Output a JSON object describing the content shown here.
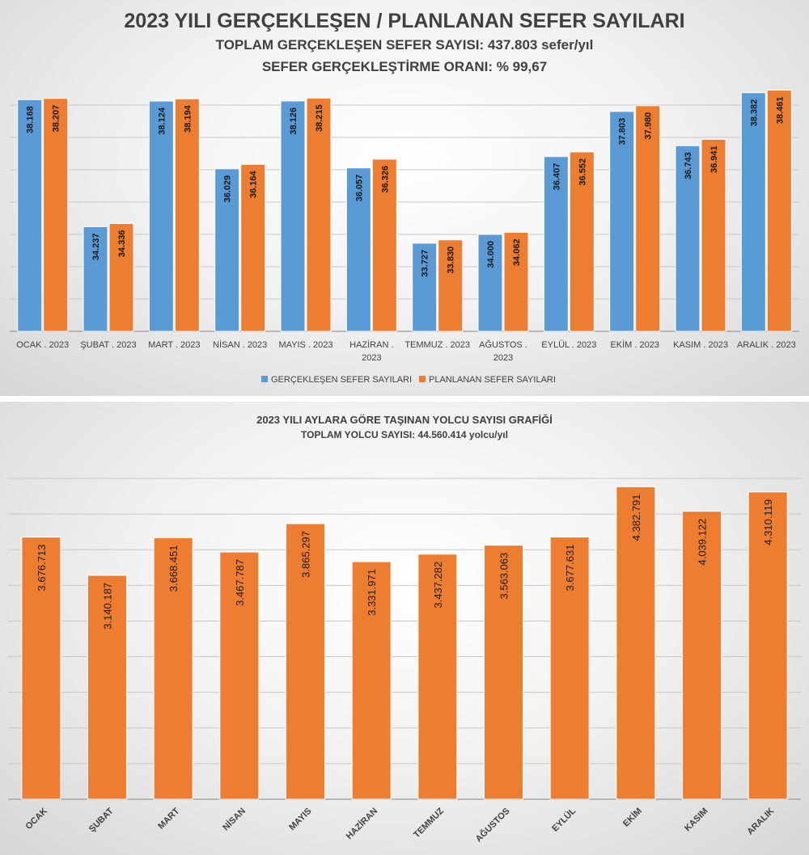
{
  "chart_data": [
    {
      "type": "bar",
      "title": "2023 YILI GERÇEKLEŞEN / PLANLANAN SEFER SAYILARI",
      "subtitle_1": "TOPLAM GERÇEKLEŞEN SEFER SAYISI: 437.803 sefer/yıl",
      "subtitle_2": "SEFER GERÇEKLEŞTİRME ORANI: % 99,67",
      "categories": [
        "OCAK . 2023",
        "ŞUBAT . 2023",
        "MART . 2023",
        "NİSAN . 2023",
        "MAYIS . 2023",
        "HAZİRAN . 2023",
        "TEMMUZ . 2023",
        "AĞUSTOS . 2023",
        "EYLÜL . 2023",
        "EKİM . 2023",
        "KASIM . 2023",
        "ARALIK . 2023"
      ],
      "series": [
        {
          "name": "GERÇEKLEŞEN SEFER SAYILARI",
          "color": "#5b9bd5",
          "values": [
            38168,
            34237,
            38124,
            36029,
            38126,
            36057,
            33727,
            34000,
            36407,
            37803,
            36743,
            38382
          ],
          "labels": [
            "38.168",
            "34.237",
            "38.124",
            "36.029",
            "38.126",
            "36.057",
            "33.727",
            "34.000",
            "36.407",
            "37.803",
            "36.743",
            "38.382"
          ]
        },
        {
          "name": "PLANLANAN SEFER SAYILARI",
          "color": "#ed7d31",
          "values": [
            38207,
            34336,
            38194,
            36164,
            38215,
            36326,
            33830,
            34062,
            36552,
            37980,
            36941,
            38461
          ],
          "labels": [
            "38.207",
            "34.336",
            "38.194",
            "36.164",
            "38.215",
            "36.326",
            "33.830",
            "34.062",
            "36.552",
            "37.980",
            "36.941",
            "38.461"
          ]
        }
      ],
      "ylim": [
        31000,
        38500
      ],
      "grid": true,
      "legend": "bottom"
    },
    {
      "type": "bar",
      "title": "2023 YILI AYLARA GÖRE TAŞINAN YOLCU SAYISI GRAFİĞİ",
      "subtitle": "TOPLAM YOLCU SAYISI: 44.560.414 yolcu/yıl",
      "categories": [
        "OCAK",
        "ŞUBAT",
        "MART",
        "NİSAN",
        "MAYIS",
        "HAZİRAN",
        "TEMMUZ",
        "AĞUSTOS",
        "EYLÜL",
        "EKİM",
        "KASIM",
        "ARALIK"
      ],
      "series": [
        {
          "color": "#ed7d31",
          "values": [
            3676713,
            3140187,
            3668451,
            3467787,
            3865297,
            3331971,
            3437282,
            3563063,
            3677631,
            4382791,
            4039122,
            4310119
          ],
          "labels": [
            "3.676.713",
            "3.140.187",
            "3.668.451",
            "3.467.787",
            "3.865.297",
            "3.331.971",
            "3.437.282",
            "3.563.063",
            "3.677.631",
            "4.382.791",
            "4.039.122",
            "4.310.119"
          ]
        }
      ],
      "ylim": [
        0,
        4500000
      ],
      "grid": true
    }
  ]
}
